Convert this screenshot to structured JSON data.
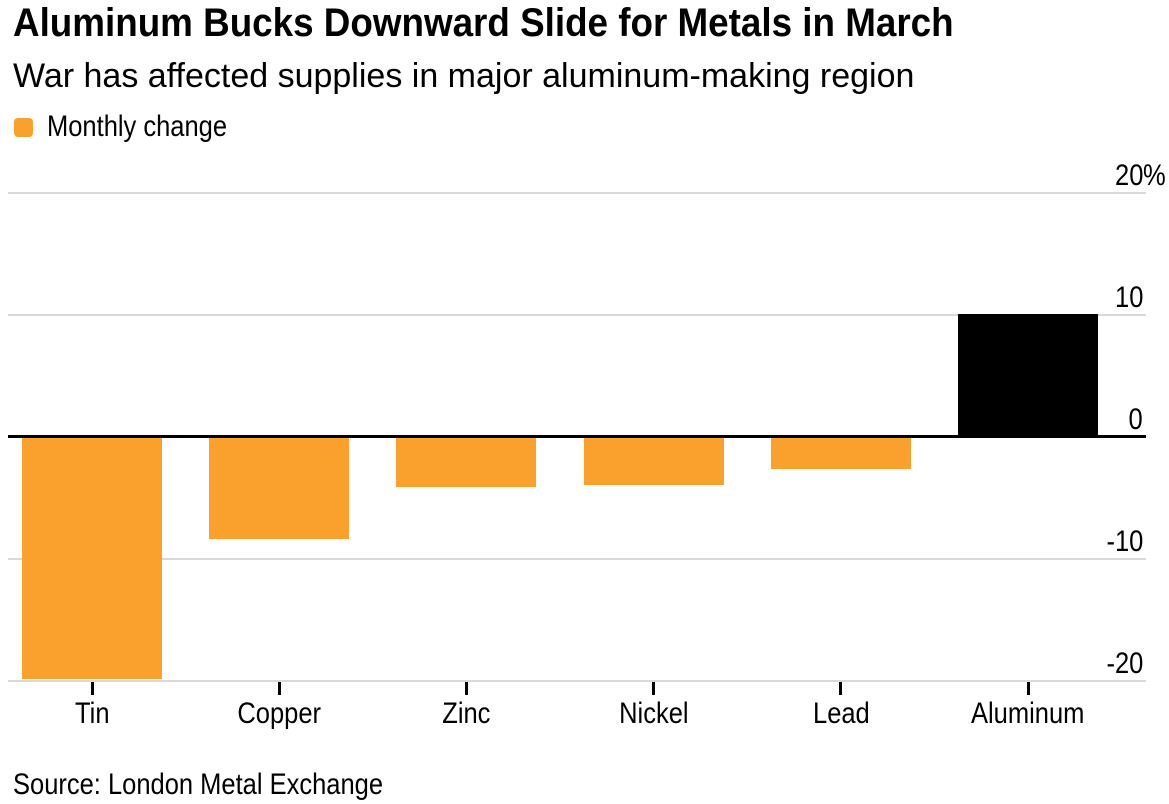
{
  "header": {
    "title": "Aluminum Bucks Downward Slide for Metals in March",
    "subtitle": "War has affected supplies in major aluminum-making region"
  },
  "legend": {
    "label": "Monthly change",
    "swatch_color": "#FAA12D"
  },
  "source_note": "Source: London Metal Exchange",
  "colors": {
    "bar_orange": "#FAA12D",
    "bar_black": "#000000",
    "gridline": "#D9D9D9",
    "zero_line": "#000000",
    "text": "#000000",
    "background": "#FFFFFF"
  },
  "chart_data": {
    "type": "bar",
    "title": "Aluminum Bucks Downward Slide for Metals in March",
    "subtitle": "War has affected supplies in major aluminum-making region",
    "legend_entries": [
      "Monthly change"
    ],
    "legend_position": "top-left",
    "unit": "%",
    "categories": [
      "Tin",
      "Copper",
      "Zinc",
      "Nickel",
      "Lead",
      "Aluminum"
    ],
    "values": [
      -19.8,
      -8.4,
      -4.1,
      -3.9,
      -2.6,
      10.1
    ],
    "bar_colors": [
      "#FAA12D",
      "#FAA12D",
      "#FAA12D",
      "#FAA12D",
      "#FAA12D",
      "#000000"
    ],
    "xlabel": "",
    "ylabel": "",
    "ylim": [
      -20,
      20
    ],
    "y_ticks": [
      {
        "value": 20,
        "label": "20",
        "suffix": "%"
      },
      {
        "value": 10,
        "label": "10",
        "suffix": ""
      },
      {
        "value": 0,
        "label": "0",
        "suffix": ""
      },
      {
        "value": -10,
        "label": "-10",
        "suffix": ""
      },
      {
        "value": -20,
        "label": "-20",
        "suffix": ""
      }
    ],
    "grid": "horizontal",
    "source": "Source: London Metal Exchange"
  }
}
